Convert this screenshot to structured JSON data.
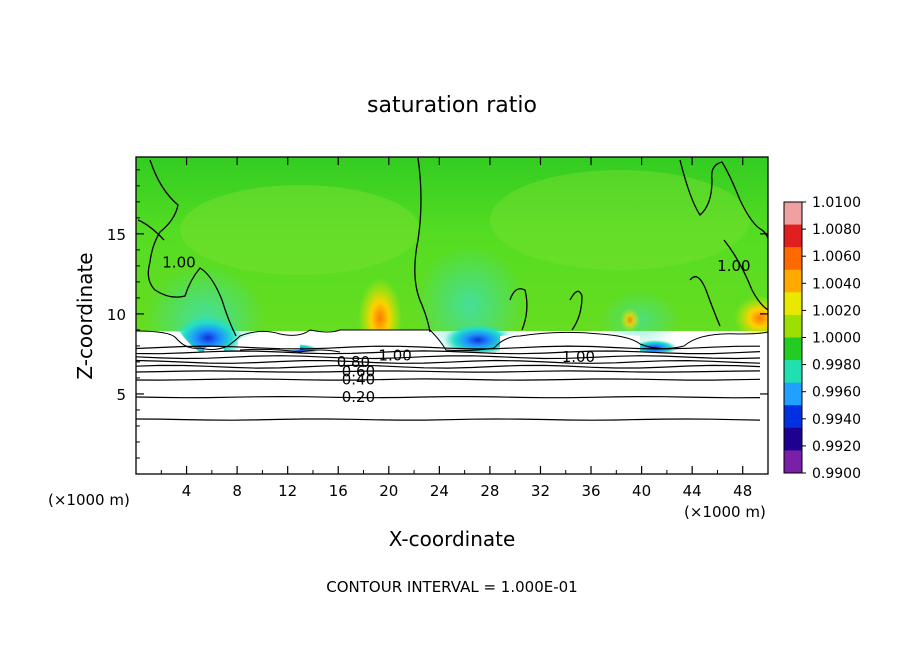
{
  "chart_data": {
    "type": "heatmap",
    "title": "saturation ratio",
    "xlabel": "X-coordinate",
    "ylabel": "Z-coordinate",
    "x_unit_left": "(×1000 m)",
    "x_unit_right": "(×1000 m)",
    "xlim": [
      0,
      50
    ],
    "ylim": [
      0,
      19.8
    ],
    "x_ticks": [
      "4",
      "8",
      "12",
      "16",
      "20",
      "24",
      "28",
      "32",
      "36",
      "40",
      "44",
      "48"
    ],
    "y_ticks": [
      "5",
      "10",
      "15"
    ],
    "footer": "CONTOUR INTERVAL = 1.000E-01",
    "colorbar": {
      "labels": [
        "1.0100",
        "1.0080",
        "1.0060",
        "1.0040",
        "1.0020",
        "1.0000",
        "0.9980",
        "0.9960",
        "0.9940",
        "0.9920",
        "0.9900"
      ],
      "colors": [
        "#f0a0a0",
        "#e02020",
        "#ff6a00",
        "#ffaa00",
        "#e8e800",
        "#9be000",
        "#22cc22",
        "#20e0b0",
        "#20a0ff",
        "#0030e0",
        "#200090",
        "#7a1fa8"
      ]
    },
    "contour_labels": [
      {
        "text": "1.00",
        "x": 3.4,
        "y": 13.2
      },
      {
        "text": "1.00",
        "x": 47.3,
        "y": 13.0
      },
      {
        "text": "1.00",
        "x": 20.5,
        "y": 7.4
      },
      {
        "text": "1.00",
        "x": 35.0,
        "y": 7.3
      },
      {
        "text": "0.80",
        "x": 17.2,
        "y": 7.0
      },
      {
        "text": "0.60",
        "x": 17.6,
        "y": 6.4
      },
      {
        "text": "0.40",
        "x": 17.6,
        "y": 5.9
      },
      {
        "text": "0.20",
        "x": 17.6,
        "y": 4.8
      }
    ],
    "contour_levels": [
      3.4,
      4.8,
      5.9,
      6.4,
      6.7,
      7.0,
      7.3,
      7.6,
      7.9
    ]
  }
}
